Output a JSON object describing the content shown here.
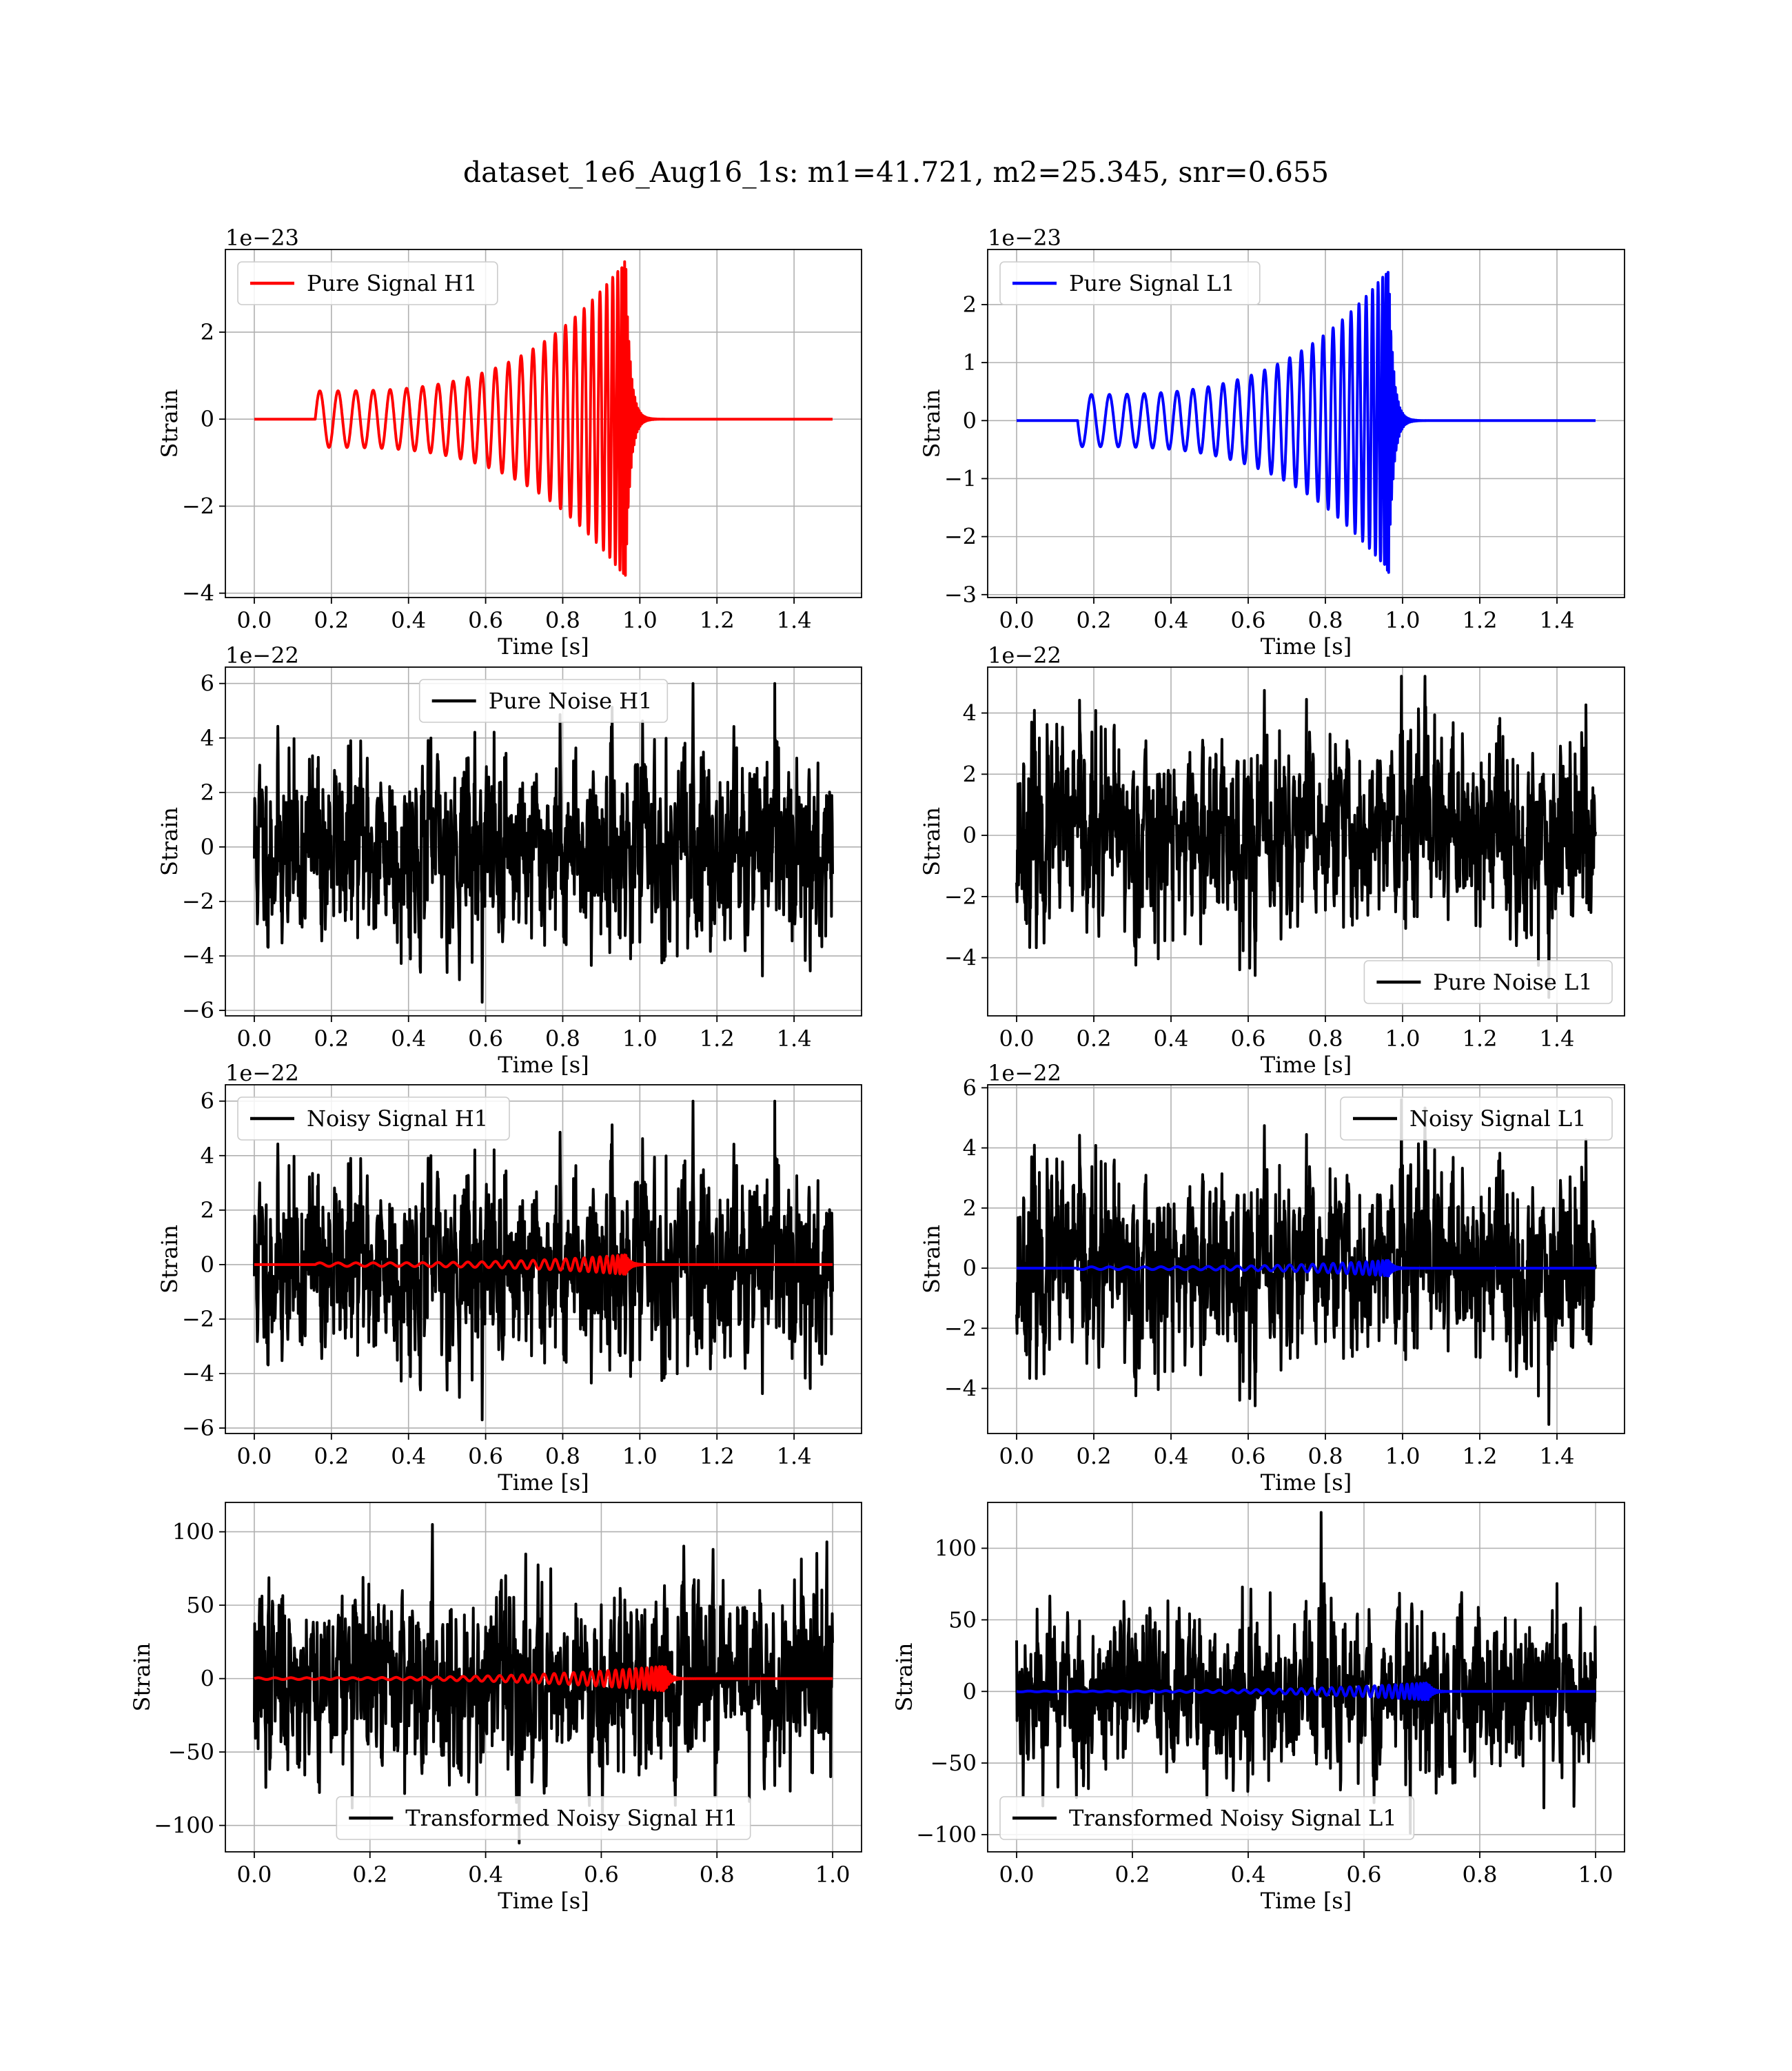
{
  "figure": {
    "title": "dataset_1e6_Aug16_1s: m1=41.721, m2=25.345, snr=0.655"
  },
  "chart_data": [
    {
      "id": "p11",
      "type": "line",
      "xlabel": "Time [s]",
      "ylabel": "Strain",
      "offset_text": "1e−23",
      "xlim": [
        -0.075,
        1.575
      ],
      "ylim": [
        -4.1,
        3.9
      ],
      "xticks": [
        0.0,
        0.2,
        0.4,
        0.6,
        0.8,
        1.0,
        1.2,
        1.4
      ],
      "xtick_labels": [
        "0.0",
        "0.2",
        "0.4",
        "0.6",
        "0.8",
        "1.0",
        "1.2",
        "1.4"
      ],
      "yticks": [
        -4,
        -2,
        0,
        2
      ],
      "ytick_labels": [
        "−4",
        "−2",
        "0",
        "2"
      ],
      "grid": true,
      "legend": "upper-left",
      "series": [
        {
          "name": "Pure Signal H1",
          "color": "#ff0000",
          "kind": "chirp",
          "t0": 0.0,
          "t1": 1.5,
          "t_start": 0.158,
          "t_merge": 0.963,
          "amp_start": 0.65,
          "amp_peak": 3.65,
          "amp_min": -3.75,
          "cycles": 27,
          "ringdown": 0.012
        }
      ]
    },
    {
      "id": "p12",
      "type": "line",
      "xlabel": "Time [s]",
      "ylabel": "Strain",
      "offset_text": "1e−23",
      "xlim": [
        -0.075,
        1.575
      ],
      "ylim": [
        -3.05,
        2.95
      ],
      "xticks": [
        0.0,
        0.2,
        0.4,
        0.6,
        0.8,
        1.0,
        1.2,
        1.4
      ],
      "xtick_labels": [
        "0.0",
        "0.2",
        "0.4",
        "0.6",
        "0.8",
        "1.0",
        "1.2",
        "1.4"
      ],
      "yticks": [
        -3,
        -2,
        -1,
        0,
        1,
        2
      ],
      "ytick_labels": [
        "−3",
        "−2",
        "−1",
        "0",
        "1",
        "2"
      ],
      "grid": true,
      "legend": "upper-left",
      "series": [
        {
          "name": "Pure Signal L1",
          "color": "#0000ff",
          "kind": "chirp",
          "t0": 0.0,
          "t1": 1.5,
          "t_start": 0.158,
          "t_merge": 0.963,
          "amp_start": 0.45,
          "amp_peak": 2.6,
          "amp_min": -2.85,
          "cycles": 27,
          "ringdown": 0.012,
          "phase_flip": true
        }
      ]
    },
    {
      "id": "p21",
      "type": "line",
      "xlabel": "Time [s]",
      "ylabel": "Strain",
      "offset_text": "1e−22",
      "xlim": [
        -0.075,
        1.575
      ],
      "ylim": [
        -6.2,
        6.6
      ],
      "xticks": [
        0.0,
        0.2,
        0.4,
        0.6,
        0.8,
        1.0,
        1.2,
        1.4
      ],
      "xtick_labels": [
        "0.0",
        "0.2",
        "0.4",
        "0.6",
        "0.8",
        "1.0",
        "1.2",
        "1.4"
      ],
      "yticks": [
        -6,
        -4,
        -2,
        0,
        2,
        4,
        6
      ],
      "ytick_labels": [
        "−6",
        "−4",
        "−2",
        "0",
        "2",
        "4",
        "6"
      ],
      "grid": true,
      "legend": "upper-center",
      "series": [
        {
          "name": "Pure Noise H1",
          "color": "#000000",
          "kind": "noise",
          "t0": 0.0,
          "t1": 1.5,
          "sigma": 1.7,
          "seed": 11,
          "min": -5.7,
          "max": 6.0
        }
      ]
    },
    {
      "id": "p22",
      "type": "line",
      "xlabel": "Time [s]",
      "ylabel": "Strain",
      "offset_text": "1e−22",
      "xlim": [
        -0.075,
        1.575
      ],
      "ylim": [
        -5.9,
        5.5
      ],
      "xticks": [
        0.0,
        0.2,
        0.4,
        0.6,
        0.8,
        1.0,
        1.2,
        1.4
      ],
      "xtick_labels": [
        "0.0",
        "0.2",
        "0.4",
        "0.6",
        "0.8",
        "1.0",
        "1.2",
        "1.4"
      ],
      "yticks": [
        -4,
        -2,
        0,
        2,
        4
      ],
      "ytick_labels": [
        "−4",
        "−2",
        "0",
        "2",
        "4"
      ],
      "grid": true,
      "legend": "lower-right",
      "series": [
        {
          "name": "Pure Noise L1",
          "color": "#000000",
          "kind": "noise",
          "t0": 0.0,
          "t1": 1.5,
          "sigma": 1.55,
          "seed": 23,
          "min": -5.3,
          "max": 5.2
        }
      ]
    },
    {
      "id": "p31",
      "type": "line",
      "xlabel": "Time [s]",
      "ylabel": "Strain",
      "offset_text": "1e−22",
      "xlim": [
        -0.075,
        1.575
      ],
      "ylim": [
        -6.2,
        6.6
      ],
      "xticks": [
        0.0,
        0.2,
        0.4,
        0.6,
        0.8,
        1.0,
        1.2,
        1.4
      ],
      "xtick_labels": [
        "0.0",
        "0.2",
        "0.4",
        "0.6",
        "0.8",
        "1.0",
        "1.2",
        "1.4"
      ],
      "yticks": [
        -6,
        -4,
        -2,
        0,
        2,
        4,
        6
      ],
      "ytick_labels": [
        "−6",
        "−4",
        "−2",
        "0",
        "2",
        "4",
        "6"
      ],
      "grid": true,
      "legend": "upper-left",
      "series": [
        {
          "name": "Noisy Signal H1",
          "color": "#000000",
          "kind": "noise",
          "t0": 0.0,
          "t1": 1.5,
          "sigma": 1.7,
          "seed": 11,
          "min": -5.7,
          "max": 6.0
        },
        {
          "name": "",
          "color": "#ff0000",
          "kind": "chirp",
          "t0": 0.0,
          "t1": 1.5,
          "t_start": 0.158,
          "t_merge": 0.963,
          "amp_start": 0.065,
          "amp_peak": 0.36,
          "amp_min": -0.37,
          "cycles": 27,
          "ringdown": 0.012
        }
      ]
    },
    {
      "id": "p32",
      "type": "line",
      "xlabel": "Time [s]",
      "ylabel": "Strain",
      "offset_text": "1e−22",
      "xlim": [
        -0.075,
        1.575
      ],
      "ylim": [
        -5.5,
        6.1
      ],
      "xticks": [
        0.0,
        0.2,
        0.4,
        0.6,
        0.8,
        1.0,
        1.2,
        1.4
      ],
      "xtick_labels": [
        "0.0",
        "0.2",
        "0.4",
        "0.6",
        "0.8",
        "1.0",
        "1.2",
        "1.4"
      ],
      "yticks": [
        -4,
        -2,
        0,
        2,
        4,
        6
      ],
      "ytick_labels": [
        "−4",
        "−2",
        "0",
        "2",
        "4",
        "6"
      ],
      "grid": true,
      "legend": "upper-right",
      "series": [
        {
          "name": "Noisy Signal L1",
          "color": "#000000",
          "kind": "noise",
          "t0": 0.0,
          "t1": 1.5,
          "sigma": 1.55,
          "seed": 23,
          "min": -5.2,
          "max": 5.6
        },
        {
          "name": "",
          "color": "#0000ff",
          "kind": "chirp",
          "t0": 0.0,
          "t1": 1.5,
          "t_start": 0.158,
          "t_merge": 0.963,
          "amp_start": 0.045,
          "amp_peak": 0.26,
          "amp_min": -0.28,
          "cycles": 27,
          "ringdown": 0.012,
          "phase_flip": true
        }
      ]
    },
    {
      "id": "p41",
      "type": "line",
      "xlabel": "Time [s]",
      "ylabel": "Strain",
      "offset_text": "",
      "xlim": [
        -0.05,
        1.05
      ],
      "ylim": [
        -118,
        120
      ],
      "xticks": [
        0.0,
        0.2,
        0.4,
        0.6,
        0.8,
        1.0
      ],
      "xtick_labels": [
        "0.0",
        "0.2",
        "0.4",
        "0.6",
        "0.8",
        "1.0"
      ],
      "yticks": [
        -100,
        -50,
        0,
        50,
        100
      ],
      "ytick_labels": [
        "−100",
        "−50",
        "0",
        "50",
        "100"
      ],
      "grid": true,
      "legend": "lower-center",
      "series": [
        {
          "name": "Transformed Noisy Signal H1",
          "color": "#000000",
          "kind": "noise",
          "t0": 0.0,
          "t1": 1.0,
          "sigma": 30,
          "seed": 37,
          "min": -112,
          "max": 105
        },
        {
          "name": "",
          "color": "#ff0000",
          "kind": "chirp",
          "t0": 0.0,
          "t1": 1.0,
          "t_start": 0.0,
          "t_merge": 0.71,
          "amp_start": 0.6,
          "amp_peak": 8.5,
          "amp_min": -9.0,
          "cycles": 40,
          "ringdown": 0.008
        }
      ]
    },
    {
      "id": "p42",
      "type": "line",
      "xlabel": "Time [s]",
      "ylabel": "Strain",
      "offset_text": "",
      "xlim": [
        -0.05,
        1.05
      ],
      "ylim": [
        -112,
        132
      ],
      "xticks": [
        0.0,
        0.2,
        0.4,
        0.6,
        0.8,
        1.0
      ],
      "xtick_labels": [
        "0.0",
        "0.2",
        "0.4",
        "0.6",
        "0.8",
        "1.0"
      ],
      "yticks": [
        -100,
        -50,
        0,
        50,
        100
      ],
      "ytick_labels": [
        "−100",
        "−50",
        "0",
        "50",
        "100"
      ],
      "grid": true,
      "legend": "lower-left",
      "series": [
        {
          "name": "Transformed Noisy Signal L1",
          "color": "#000000",
          "kind": "noise",
          "t0": 0.0,
          "t1": 1.0,
          "sigma": 28,
          "seed": 53,
          "min": -99,
          "max": 125
        },
        {
          "name": "",
          "color": "#0000ff",
          "kind": "chirp",
          "t0": 0.0,
          "t1": 1.0,
          "t_start": 0.0,
          "t_merge": 0.71,
          "amp_start": 0.3,
          "amp_peak": 6.0,
          "amp_min": -6.5,
          "cycles": 40,
          "ringdown": 0.008,
          "phase_flip": true
        }
      ]
    }
  ]
}
